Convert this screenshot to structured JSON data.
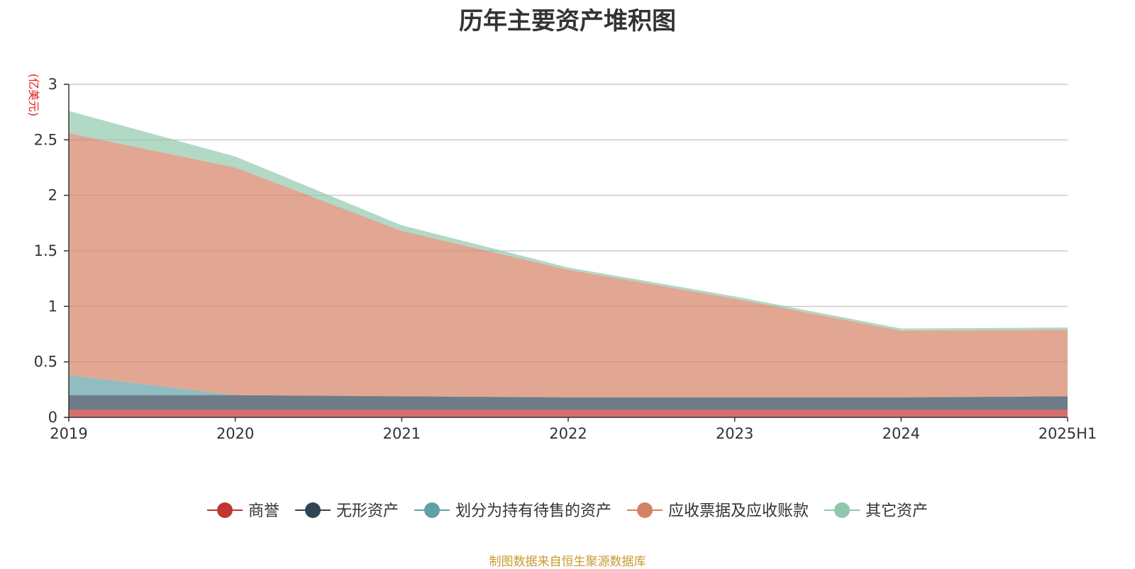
{
  "chart_data": {
    "type": "area",
    "stacked": true,
    "title": "历年主要资产堆积图",
    "ylabel": "(亿美元)",
    "x": [
      "2019",
      "2020",
      "2021",
      "2022",
      "2023",
      "2024",
      "2025H1"
    ],
    "ylim": [
      0,
      3
    ],
    "yticks": [
      "0",
      "0.5",
      "1",
      "1.5",
      "2",
      "2.5",
      "3"
    ],
    "grid": true,
    "legend_position": "bottom",
    "series": [
      {
        "name": "商誉",
        "color": "#c23531",
        "values": [
          0.07,
          0.07,
          0.07,
          0.07,
          0.07,
          0.07,
          0.07
        ]
      },
      {
        "name": "无形资产",
        "color": "#2f4554",
        "values": [
          0.13,
          0.13,
          0.12,
          0.11,
          0.11,
          0.11,
          0.12
        ]
      },
      {
        "name": "划分为持有待售的资产",
        "color": "#61a0a8",
        "values": [
          0.18,
          0.0,
          0.0,
          0.0,
          0.0,
          0.0,
          0.0
        ]
      },
      {
        "name": "应收票据及应收账款",
        "color": "#d48265",
        "values": [
          2.18,
          2.05,
          1.49,
          1.15,
          0.89,
          0.6,
          0.6
        ]
      },
      {
        "name": "其它资产",
        "color": "#91c7ae",
        "values": [
          0.2,
          0.1,
          0.05,
          0.02,
          0.02,
          0.02,
          0.02
        ]
      }
    ],
    "source": "制图数据来自恒生聚源数据库"
  }
}
